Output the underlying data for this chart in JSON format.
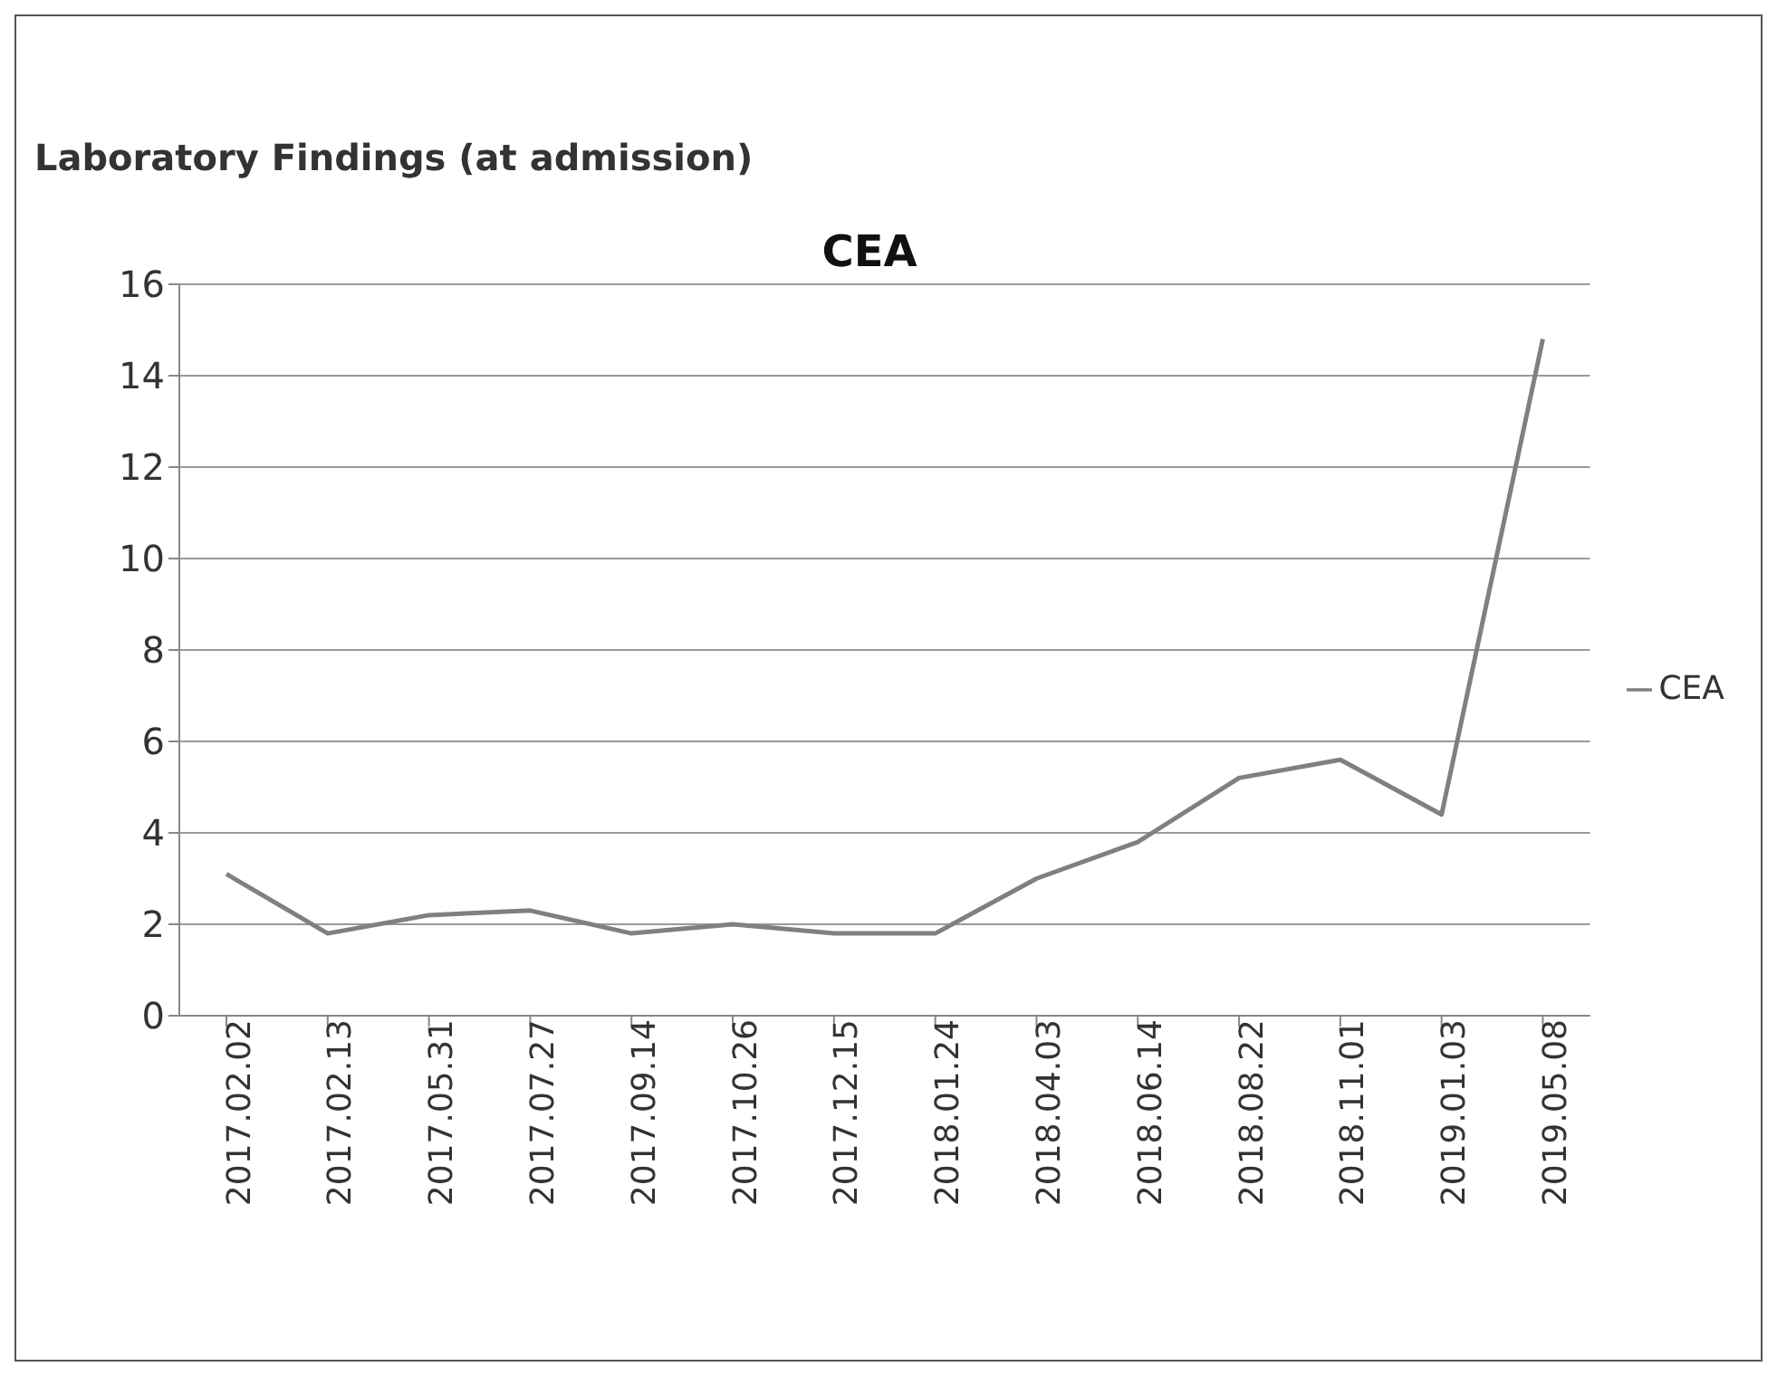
{
  "chart_data": {
    "type": "line",
    "title": "Laboratory Findings (at admission)",
    "subtitle": "CEA",
    "categories": [
      "2017.02.02",
      "2017.02.13",
      "2017.05.31",
      "2017.07.27",
      "2017.09.14",
      "2017.10.26",
      "2017.12.15",
      "2018.01.24",
      "2018.04.03",
      "2018.06.14",
      "2018.08.22",
      "2018.11.01",
      "2019.01.03",
      "2019.05.08"
    ],
    "series": [
      {
        "name": "CEA",
        "color": "#808080",
        "values": [
          3.1,
          1.8,
          2.2,
          2.3,
          1.8,
          2.0,
          1.8,
          1.8,
          3.0,
          3.8,
          5.2,
          5.6,
          4.4,
          14.8
        ]
      }
    ],
    "ylim": [
      0,
      16
    ],
    "yticks": [
      0,
      2,
      4,
      6,
      8,
      10,
      12,
      14,
      16
    ],
    "grid": "y",
    "legend": "right",
    "marker": "none",
    "line_style": "solid"
  }
}
